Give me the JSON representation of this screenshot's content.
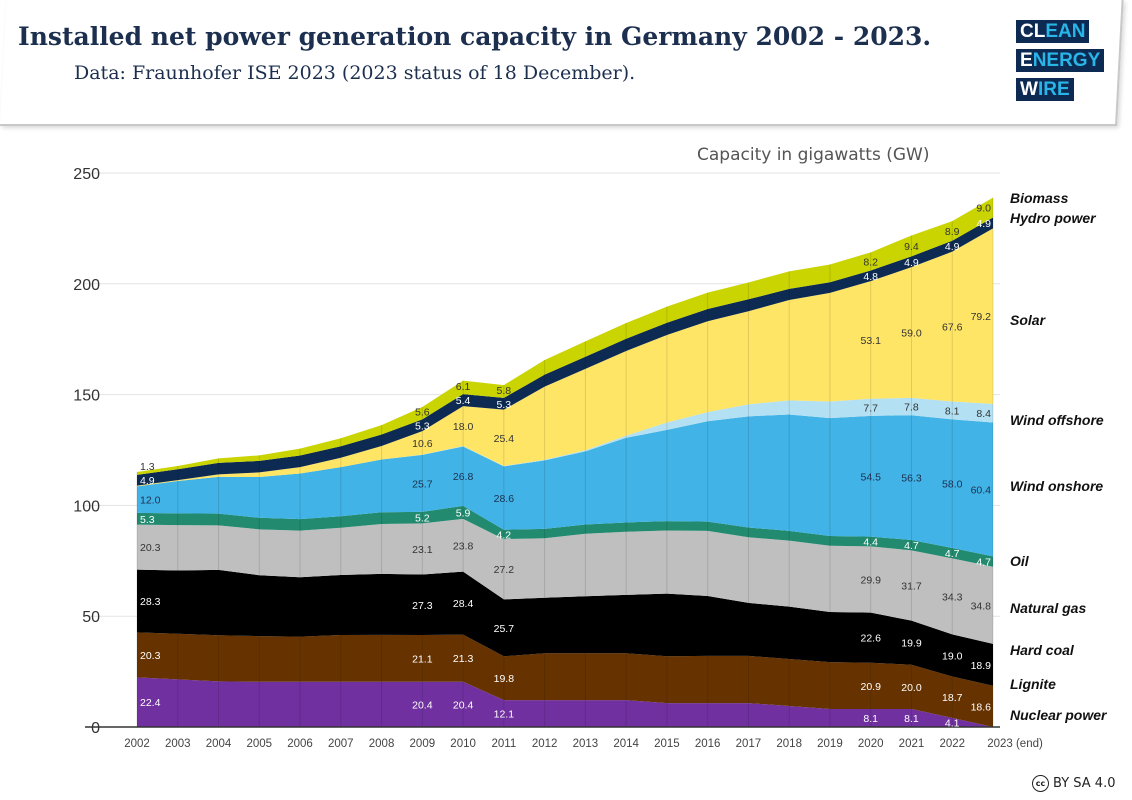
{
  "header": {
    "title": "Installed net power generation capacity in Germany 2002 - 2023.",
    "subtitle": "Data: Fraunhofer ISE 2023 (2023 status of 18 December)."
  },
  "logo": {
    "lines": [
      [
        "CL",
        "EAN"
      ],
      [
        "E",
        "NERGY"
      ],
      [
        "W",
        "IRE"
      ]
    ]
  },
  "license": {
    "text": "BY SA 4.0",
    "icon": "cc-icon"
  },
  "chart_data": {
    "type": "area",
    "stacked": true,
    "title": "Installed net power generation capacity in Germany 2002 - 2023.",
    "ylabel": "Capacity in gigawatts (GW)",
    "ylim": [
      0,
      250
    ],
    "yticks": [
      0,
      50,
      100,
      150,
      200,
      250
    ],
    "grid": true,
    "legend": "right",
    "categories": [
      "2002",
      "2003",
      "2004",
      "2005",
      "2006",
      "2007",
      "2008",
      "2009",
      "2010",
      "2011",
      "2012",
      "2013",
      "2014",
      "2015",
      "2016",
      "2017",
      "2018",
      "2019",
      "2020",
      "2021",
      "2022",
      "2023 (end)"
    ],
    "series": [
      {
        "name": "Nuclear power",
        "color": "#7030a0",
        "label_color": "#ffffff",
        "values": [
          22.4,
          21.5,
          20.6,
          20.4,
          20.4,
          20.4,
          20.4,
          20.4,
          20.4,
          12.1,
          12.1,
          12.1,
          12.1,
          10.8,
          10.8,
          10.8,
          9.5,
          8.1,
          8.1,
          8.1,
          4.1,
          0
        ],
        "labeled": [
          "2002",
          "2009",
          "2010",
          "2011",
          "2020",
          "2021",
          "2022"
        ]
      },
      {
        "name": "Lignite",
        "color": "#663300",
        "label_color": "#ffffff",
        "values": [
          20.3,
          20.6,
          20.8,
          20.6,
          20.4,
          21.1,
          21.2,
          21.1,
          21.3,
          19.8,
          21.2,
          21.2,
          21.2,
          21.1,
          21.3,
          21.3,
          21.2,
          21.2,
          20.9,
          20.0,
          18.7,
          18.6
        ],
        "labeled": [
          "2002",
          "2009",
          "2010",
          "2011",
          "2020",
          "2021",
          "2022",
          "2023 (end)"
        ]
      },
      {
        "name": "Hard coal",
        "color": "#000000",
        "label_color": "#ffffff",
        "values": [
          28.3,
          28.5,
          29.5,
          27.5,
          26.8,
          27.1,
          27.5,
          27.3,
          28.4,
          25.7,
          25.0,
          25.7,
          26.3,
          28.3,
          27.0,
          23.9,
          23.6,
          22.6,
          22.6,
          19.9,
          19.0,
          18.9
        ],
        "labeled": [
          "2002",
          "2009",
          "2010",
          "2011",
          "2020",
          "2021",
          "2022",
          "2023 (end)"
        ]
      },
      {
        "name": "Natural gas",
        "color": "#bfbfbf",
        "label_color": "#333333",
        "values": [
          20.3,
          20.5,
          20.1,
          20.7,
          21.0,
          21.3,
          22.5,
          23.1,
          23.8,
          27.2,
          26.9,
          28.2,
          28.5,
          28.5,
          29.4,
          29.6,
          29.8,
          29.9,
          29.9,
          31.7,
          34.3,
          34.8
        ],
        "labeled": [
          "2002",
          "2009",
          "2010",
          "2011",
          "2020",
          "2021",
          "2022",
          "2023 (end)"
        ]
      },
      {
        "name": "Oil",
        "color": "#218a6f",
        "label_color": "#ffffff",
        "values": [
          5.3,
          5.3,
          5.3,
          5.2,
          5.2,
          5.2,
          5.3,
          5.2,
          5.9,
          4.2,
          4.2,
          4.2,
          4.2,
          4.2,
          4.2,
          4.4,
          4.4,
          4.4,
          4.4,
          4.7,
          4.7,
          4.7
        ],
        "labeled": [
          "2002",
          "2009",
          "2010",
          "2011",
          "2020",
          "2021",
          "2022",
          "2023 (end)"
        ]
      },
      {
        "name": "Wind onshore",
        "color": "#41b3e6",
        "label_color": "#1c2f4f",
        "values": [
          12.0,
          14.6,
          16.6,
          18.4,
          20.6,
          22.2,
          23.8,
          25.7,
          26.8,
          28.6,
          30.9,
          33.0,
          38.2,
          41.2,
          45.3,
          50.2,
          52.5,
          53.2,
          54.5,
          56.3,
          58.0,
          60.4
        ],
        "labeled": [
          "2002",
          "2009",
          "2010",
          "2011",
          "2020",
          "2021",
          "2022",
          "2023 (end)"
        ]
      },
      {
        "name": "Wind offshore",
        "color": "#b3e0f2",
        "label_color": "#333333",
        "values": [
          0,
          0,
          0,
          0,
          0,
          0,
          0,
          0.1,
          0.2,
          0.2,
          0.3,
          0.5,
          1.0,
          3.3,
          4.1,
          5.4,
          6.4,
          7.5,
          7.7,
          7.8,
          8.1,
          8.4
        ],
        "labeled": [
          "2020",
          "2021",
          "2022",
          "2023 (end)"
        ]
      },
      {
        "name": "Solar",
        "color": "#ffe566",
        "label_color": "#333333",
        "values": [
          0.3,
          0.4,
          1.1,
          2.1,
          2.9,
          4.2,
          6.1,
          10.6,
          18.0,
          25.4,
          33.0,
          36.7,
          38.2,
          39.5,
          41.0,
          42.0,
          45.3,
          49.0,
          53.1,
          59.0,
          67.6,
          79.2
        ],
        "labeled": [
          "2009",
          "2010",
          "2011",
          "2020",
          "2021",
          "2022",
          "2023 (end)"
        ]
      },
      {
        "name": "Hydro power",
        "color": "#0d2b52",
        "label_color": "#ffffff",
        "values": [
          4.9,
          4.9,
          5.2,
          5.2,
          5.2,
          5.2,
          5.2,
          5.3,
          5.4,
          5.3,
          5.4,
          5.5,
          5.5,
          5.5,
          5.5,
          5.4,
          5.0,
          4.8,
          4.8,
          4.9,
          4.9,
          4.9
        ],
        "labeled": [
          "2002",
          "2009",
          "2010",
          "2011",
          "2020",
          "2021",
          "2022",
          "2023 (end)"
        ]
      },
      {
        "name": "Biomass",
        "color": "#c9d400",
        "label_color": "#333333",
        "values": [
          1.3,
          1.5,
          2.0,
          2.5,
          3.1,
          3.6,
          4.2,
          5.6,
          6.1,
          5.8,
          6.6,
          6.9,
          7.1,
          7.3,
          7.4,
          7.6,
          7.9,
          8.0,
          8.2,
          9.4,
          8.9,
          9.0
        ],
        "labeled": [
          "2002",
          "2009",
          "2010",
          "2011",
          "2020",
          "2021",
          "2022",
          "2023 (end)"
        ]
      }
    ]
  }
}
